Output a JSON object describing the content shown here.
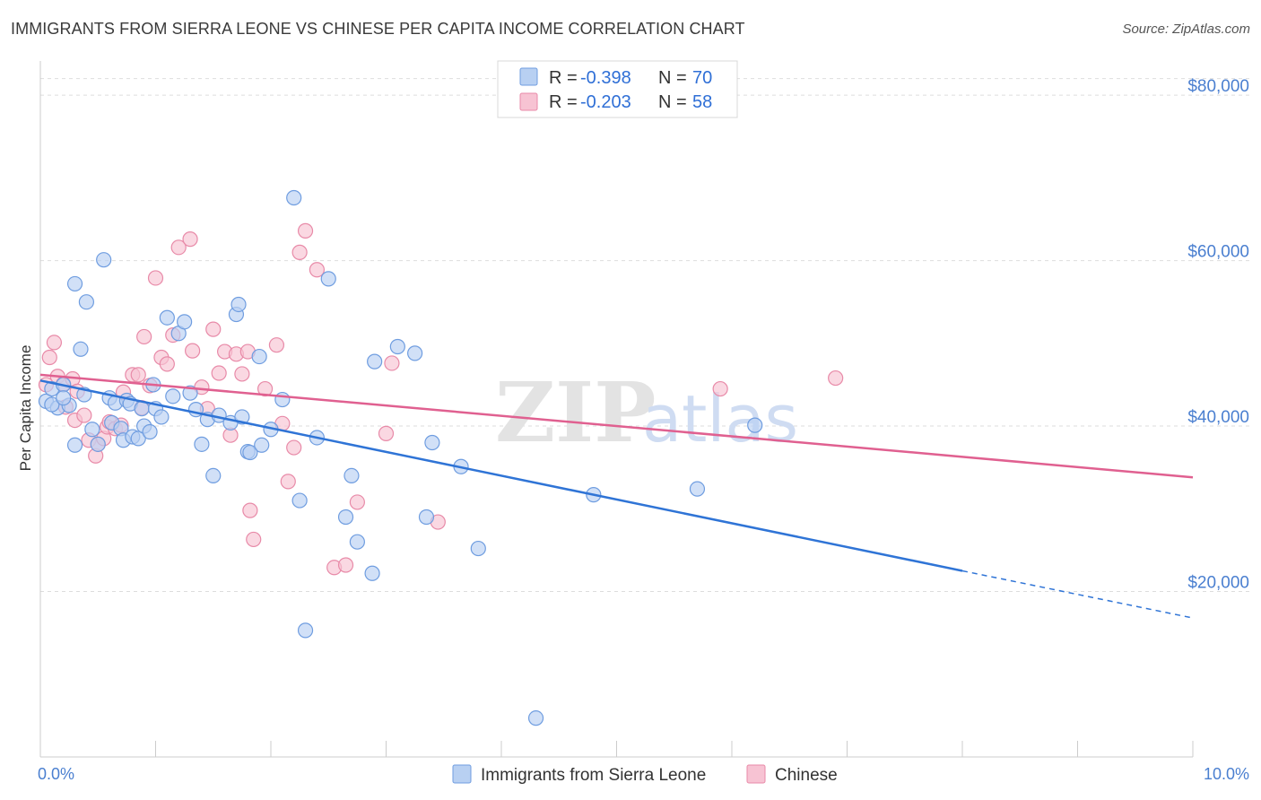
{
  "title": "IMMIGRANTS FROM SIERRA LEONE VS CHINESE PER CAPITA INCOME CORRELATION CHART",
  "source": "Source: ZipAtlas.com",
  "watermark": {
    "zip": "ZIP",
    "atlas": "atlas"
  },
  "legend": {
    "rows": [
      {
        "r_label": "R = ",
        "r_value": "-0.398",
        "n_label": "N = ",
        "n_value": "70"
      },
      {
        "r_label": "R = ",
        "r_value": "-0.203",
        "n_label": "N = ",
        "n_value": "58"
      }
    ]
  },
  "colors": {
    "blue_fill": "#b8d0f2",
    "blue_stroke": "#6f9de0",
    "blue_line": "#2f74d6",
    "pink_fill": "#f7c3d3",
    "pink_stroke": "#e88aa8",
    "pink_line": "#e06090",
    "grid": "#dddddd",
    "axis_text": "#4a7fd0"
  },
  "chart_data": {
    "type": "scatter",
    "title": "IMMIGRANTS FROM SIERRA LEONE VS CHINESE PER CAPITA INCOME CORRELATION CHART",
    "xlabel": "",
    "ylabel": "Per Capita Income",
    "xlim": [
      0,
      10
    ],
    "ylim": [
      0,
      85000
    ],
    "x_tick_labels": [
      "0.0%",
      "10.0%"
    ],
    "y_ticks": [
      20000,
      40000,
      60000,
      80000
    ],
    "y_tick_labels": [
      "$20,000",
      "$40,000",
      "$60,000",
      "$80,000"
    ],
    "grid": "horizontal dashed",
    "legend_position": "top-center",
    "series": [
      {
        "name": "Immigrants from Sierra Leone",
        "r": -0.398,
        "n": 70,
        "trend": {
          "x0": 0.0,
          "y0": 45500,
          "x1": 8.0,
          "y1": 22500,
          "dashed_to_x": 10.0,
          "dashed_to_y": 16800
        },
        "points": [
          [
            0.05,
            43000
          ],
          [
            0.1,
            44500
          ],
          [
            0.15,
            42200
          ],
          [
            0.2,
            45000
          ],
          [
            0.25,
            42500
          ],
          [
            0.3,
            37700
          ],
          [
            0.3,
            57200
          ],
          [
            0.35,
            49300
          ],
          [
            0.38,
            43800
          ],
          [
            0.4,
            55000
          ],
          [
            0.45,
            39600
          ],
          [
            0.5,
            37800
          ],
          [
            0.55,
            60100
          ],
          [
            0.6,
            43400
          ],
          [
            0.62,
            40400
          ],
          [
            0.65,
            42800
          ],
          [
            0.7,
            39700
          ],
          [
            0.72,
            38300
          ],
          [
            0.75,
            43100
          ],
          [
            0.78,
            42700
          ],
          [
            0.8,
            38700
          ],
          [
            0.85,
            38500
          ],
          [
            0.88,
            42100
          ],
          [
            0.9,
            40000
          ],
          [
            0.95,
            39300
          ],
          [
            0.98,
            45000
          ],
          [
            1.0,
            42100
          ],
          [
            1.05,
            41100
          ],
          [
            1.1,
            53100
          ],
          [
            1.15,
            43600
          ],
          [
            1.2,
            51200
          ],
          [
            1.25,
            52600
          ],
          [
            1.3,
            44000
          ],
          [
            1.35,
            42000
          ],
          [
            1.4,
            37800
          ],
          [
            1.45,
            40800
          ],
          [
            1.5,
            34000
          ],
          [
            1.55,
            41300
          ],
          [
            1.65,
            40400
          ],
          [
            1.7,
            53500
          ],
          [
            1.72,
            54700
          ],
          [
            1.75,
            41100
          ],
          [
            1.8,
            36900
          ],
          [
            1.82,
            36800
          ],
          [
            1.9,
            48400
          ],
          [
            1.92,
            37700
          ],
          [
            2.0,
            39600
          ],
          [
            2.1,
            43200
          ],
          [
            2.2,
            67600
          ],
          [
            2.25,
            31000
          ],
          [
            2.3,
            15300
          ],
          [
            2.4,
            38600
          ],
          [
            2.5,
            57800
          ],
          [
            2.65,
            29000
          ],
          [
            2.7,
            34000
          ],
          [
            2.75,
            26000
          ],
          [
            2.88,
            22200
          ],
          [
            2.9,
            47800
          ],
          [
            3.1,
            49600
          ],
          [
            3.25,
            48800
          ],
          [
            3.35,
            29000
          ],
          [
            3.4,
            38000
          ],
          [
            3.65,
            35100
          ],
          [
            3.8,
            25200
          ],
          [
            4.3,
            4700
          ],
          [
            4.8,
            31700
          ],
          [
            5.7,
            32400
          ],
          [
            6.2,
            40100
          ],
          [
            0.1,
            42600
          ],
          [
            0.2,
            43400
          ]
        ]
      },
      {
        "name": "Chinese",
        "r": -0.203,
        "n": 58,
        "trend": {
          "x0": 0.0,
          "y0": 46200,
          "x1": 10.0,
          "y1": 33800
        },
        "points": [
          [
            0.05,
            45000
          ],
          [
            0.08,
            48300
          ],
          [
            0.12,
            50100
          ],
          [
            0.15,
            46000
          ],
          [
            0.2,
            45100
          ],
          [
            0.22,
            42300
          ],
          [
            0.28,
            45700
          ],
          [
            0.3,
            40700
          ],
          [
            0.32,
            44200
          ],
          [
            0.38,
            41300
          ],
          [
            0.42,
            38300
          ],
          [
            0.48,
            36400
          ],
          [
            0.5,
            37800
          ],
          [
            0.55,
            38500
          ],
          [
            0.58,
            39900
          ],
          [
            0.6,
            40500
          ],
          [
            0.65,
            39700
          ],
          [
            0.7,
            40100
          ],
          [
            0.72,
            44100
          ],
          [
            0.8,
            46200
          ],
          [
            0.85,
            46200
          ],
          [
            0.88,
            42200
          ],
          [
            0.9,
            50800
          ],
          [
            0.95,
            44900
          ],
          [
            1.0,
            57900
          ],
          [
            1.05,
            48300
          ],
          [
            1.1,
            47500
          ],
          [
            1.15,
            51000
          ],
          [
            1.2,
            61600
          ],
          [
            1.3,
            62600
          ],
          [
            1.32,
            49100
          ],
          [
            1.4,
            44700
          ],
          [
            1.45,
            42100
          ],
          [
            1.5,
            51700
          ],
          [
            1.55,
            46400
          ],
          [
            1.6,
            49000
          ],
          [
            1.65,
            38900
          ],
          [
            1.7,
            48700
          ],
          [
            1.75,
            46300
          ],
          [
            1.8,
            49000
          ],
          [
            1.82,
            29800
          ],
          [
            1.85,
            26300
          ],
          [
            1.95,
            44500
          ],
          [
            2.05,
            49800
          ],
          [
            2.1,
            40300
          ],
          [
            2.15,
            33300
          ],
          [
            2.2,
            37400
          ],
          [
            2.25,
            61000
          ],
          [
            2.3,
            63600
          ],
          [
            2.4,
            58900
          ],
          [
            2.55,
            22900
          ],
          [
            2.65,
            23200
          ],
          [
            2.75,
            30800
          ],
          [
            3.0,
            39100
          ],
          [
            3.05,
            47600
          ],
          [
            3.45,
            28400
          ],
          [
            5.9,
            44500
          ],
          [
            6.9,
            45800
          ]
        ]
      }
    ]
  },
  "bottom_legend": [
    {
      "label": "Immigrants from Sierra Leone"
    },
    {
      "label": "Chinese"
    }
  ]
}
